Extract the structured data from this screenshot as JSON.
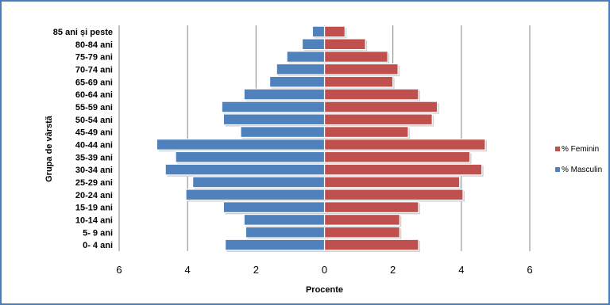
{
  "chart_data": {
    "type": "bar",
    "orientation": "horizontal",
    "subtype": "population-pyramid",
    "xlabel": "Procente",
    "ylabel": "Grupa de vârstă",
    "xlim": [
      -6,
      6
    ],
    "xticks": [
      -6,
      -4,
      -2,
      0,
      2,
      4,
      6
    ],
    "xtick_labels": [
      "6",
      "4",
      "2",
      "0",
      "2",
      "4",
      "6"
    ],
    "grid": true,
    "legend_position": "right",
    "categories": [
      "85 ani și peste",
      "80-84 ani",
      "75-79 ani",
      "70-74 ani",
      "65-69 ani",
      "60-64 ani",
      "55-59 ani",
      "50-54 ani",
      "45-49 ani",
      "40-44 ani",
      "35-39 ani",
      "30-34 ani",
      "25-29 ani",
      "20-24 ani",
      "15-19 ani",
      "10-14 ani",
      "5- 9 ani",
      "0- 4 ani"
    ],
    "series": [
      {
        "name": "% Feminin",
        "color": "#c0504d",
        "values": [
          0.6,
          1.2,
          1.85,
          2.15,
          2.0,
          2.75,
          3.3,
          3.15,
          2.45,
          4.7,
          4.25,
          4.6,
          3.95,
          4.05,
          2.75,
          2.2,
          2.2,
          2.75
        ]
      },
      {
        "name": "% Masculin",
        "color": "#4f81bd",
        "values": [
          0.35,
          0.65,
          1.1,
          1.4,
          1.6,
          2.35,
          3.0,
          2.95,
          2.45,
          4.9,
          4.35,
          4.65,
          3.85,
          4.05,
          2.95,
          2.35,
          2.3,
          2.9
        ]
      }
    ]
  }
}
